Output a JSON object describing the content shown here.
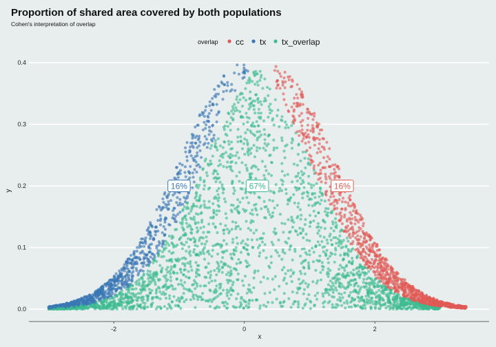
{
  "chart_data": {
    "type": "scatter",
    "title": "Proportion of shared area covered by both populations",
    "subtitle": "Cohen's interpretation of overlap",
    "xlabel": "x",
    "ylabel": "y",
    "xlim": [
      -3.3,
      3.75
    ],
    "ylim": [
      -0.02,
      0.41
    ],
    "x_ticks": [
      -2,
      0,
      2
    ],
    "x_tick_labels": [
      "-2",
      "0",
      "2"
    ],
    "y_ticks": [
      0.0,
      0.1,
      0.2,
      0.3,
      0.4
    ],
    "y_tick_labels": [
      "0.0",
      "0.1",
      "0.2",
      "0.3",
      "0.4"
    ],
    "grid": "horizontal major gridlines",
    "legend": {
      "title": "overlap",
      "position": "top",
      "entries": [
        {
          "label": "cc",
          "color": "#e05a55"
        },
        {
          "label": "tx",
          "color": "#3a78b5"
        },
        {
          "label": "tx_overlap",
          "color": "#3dbb90"
        }
      ]
    },
    "distributions": {
      "tx": {
        "mean": 0.0,
        "sd": 1.0,
        "approx_min_x": -3.0,
        "approx_max_x": 0.25
      },
      "cc": {
        "mean": 0.4,
        "sd": 1.0,
        "approx_min_x": 0.45,
        "approx_max_x": 3.4
      },
      "note_points": "uniform points under each density curve; tx region left of the crossover, cc region right of it, tx_overlap region under both"
    },
    "annotations": [
      {
        "text": "16%",
        "x": -1.0,
        "y": 0.2,
        "group": "tx"
      },
      {
        "text": "67%",
        "x": 0.2,
        "y": 0.2,
        "group": "tx_overlap"
      },
      {
        "text": "16%",
        "x": 1.5,
        "y": 0.2,
        "group": "cc"
      }
    ],
    "colors": {
      "cc": "#e05a55",
      "tx": "#3a78b5",
      "tx_overlap": "#3dbb90",
      "background": "#e8eded"
    }
  }
}
